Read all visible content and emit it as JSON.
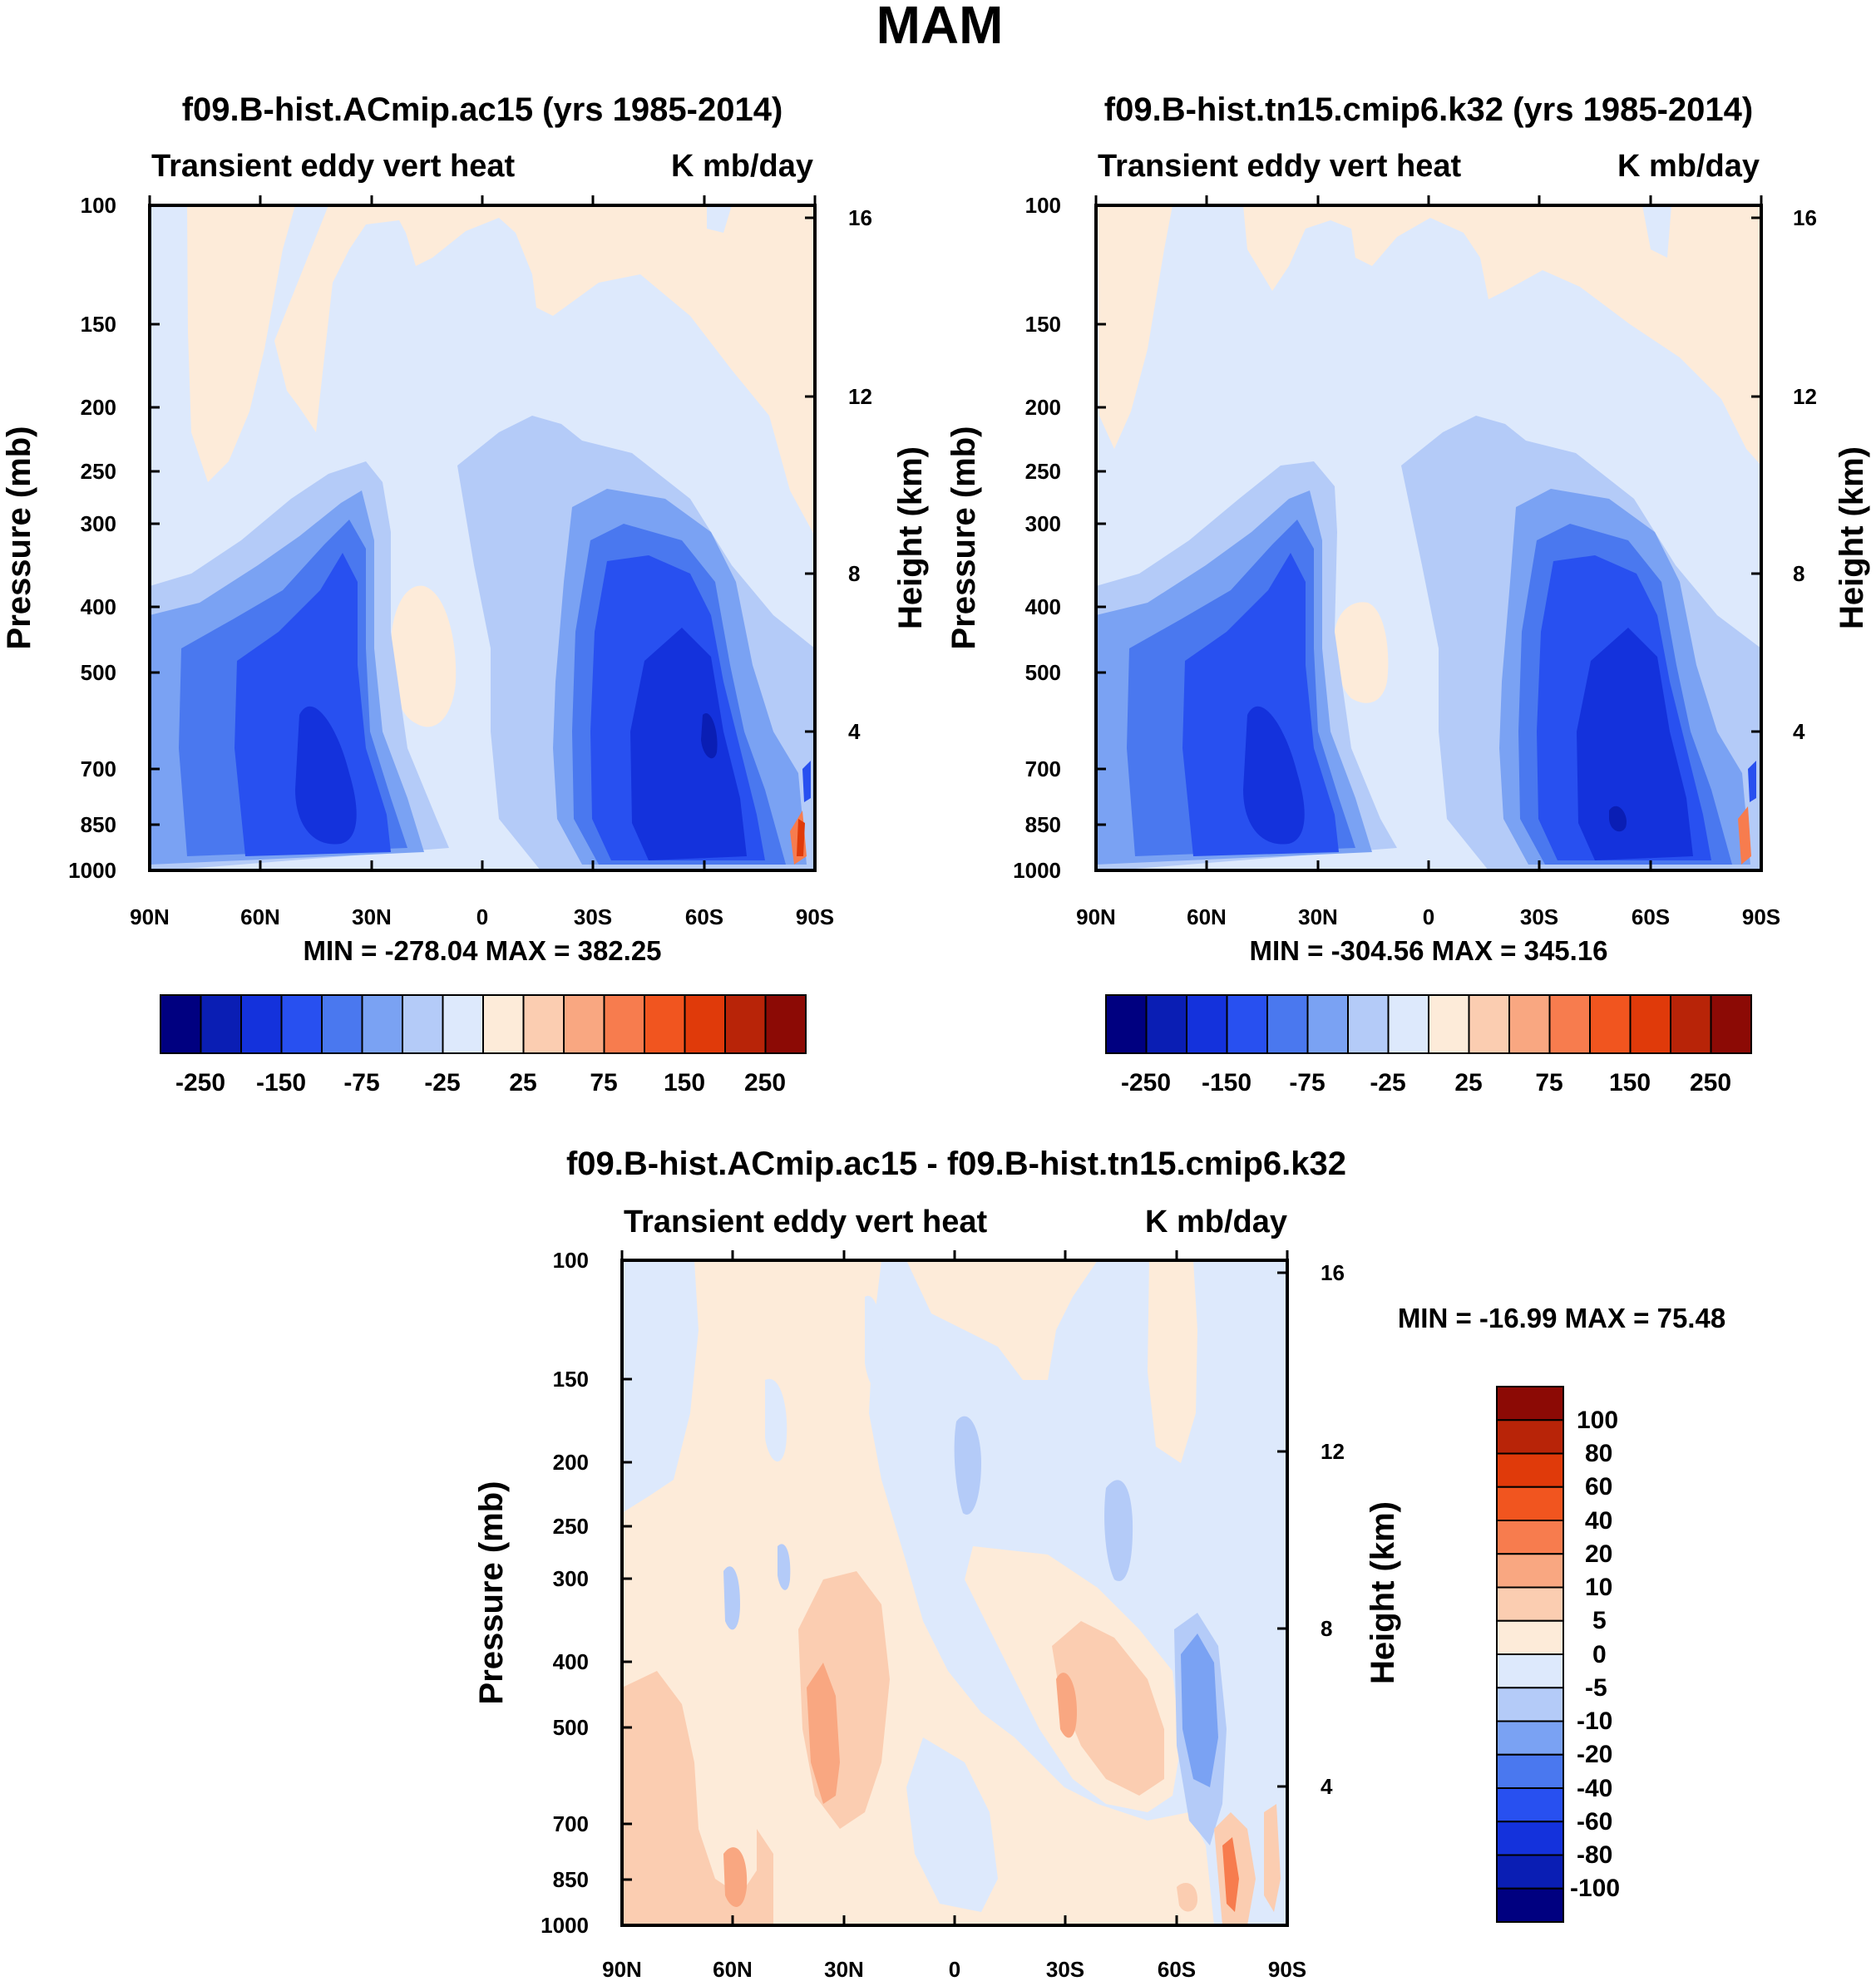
{
  "chart_data": {
    "title": "MAM",
    "type": "heatmap",
    "plots": [
      {
        "id": "p1",
        "title": "f09.B-hist.ACmip.ac15 (yrs 1985-2014)",
        "left_string": "Transient eddy vert heat",
        "right_string": "K mb/day",
        "ylabel": "Pressure (mb)",
        "ylabel_right": "Height (km)",
        "x_ticks": [
          "90N",
          "60N",
          "30N",
          "0",
          "30S",
          "60S",
          "90S"
        ],
        "y_ticks": [
          100,
          150,
          200,
          250,
          300,
          400,
          500,
          700,
          850,
          1000
        ],
        "height_ticks": [
          4,
          8,
          12,
          16
        ],
        "stats": "MIN = -278.04   MAX = 382.25",
        "min": -278.04,
        "max": 382.25
      },
      {
        "id": "p2",
        "title": "f09.B-hist.tn15.cmip6.k32 (yrs 1985-2014)",
        "left_string": "Transient eddy vert heat",
        "right_string": "K mb/day",
        "ylabel": "Pressure (mb)",
        "ylabel_right": "Height (km)",
        "x_ticks": [
          "90N",
          "60N",
          "30N",
          "0",
          "30S",
          "60S",
          "90S"
        ],
        "y_ticks": [
          100,
          150,
          200,
          250,
          300,
          400,
          500,
          700,
          850,
          1000
        ],
        "height_ticks": [
          4,
          8,
          12,
          16
        ],
        "stats": "MIN = -304.56   MAX = 345.16",
        "min": -304.56,
        "max": 345.16
      },
      {
        "id": "p3",
        "title": "f09.B-hist.ACmip.ac15 - f09.B-hist.tn15.cmip6.k32",
        "left_string": "Transient eddy vert heat",
        "right_string": "K mb/day",
        "ylabel": "Pressure (mb)",
        "ylabel_right": "Height (km)",
        "x_ticks": [
          "90N",
          "60N",
          "30N",
          "0",
          "30S",
          "60S",
          "90S"
        ],
        "y_ticks": [
          100,
          150,
          200,
          250,
          300,
          400,
          500,
          700,
          850,
          1000
        ],
        "height_ticks": [
          4,
          8,
          12,
          16
        ],
        "stats": "MIN = -16.99   MAX =  75.48",
        "min": -16.99,
        "max": 75.48
      }
    ],
    "colorbar_main": {
      "orientation": "horizontal",
      "labels": [
        "-250",
        "-150",
        "-75",
        "-25",
        "25",
        "75",
        "150",
        "250"
      ],
      "colors": [
        "#000080",
        "#0a1eb4",
        "#1432dc",
        "#2850f0",
        "#4a78ef",
        "#7aa2f3",
        "#b4cbf8",
        "#dde9fc",
        "#fdebd9",
        "#fbcdb1",
        "#f9a781",
        "#f77c4e",
        "#f1551f",
        "#e03a0a",
        "#b82408",
        "#8c0a05"
      ]
    },
    "colorbar_diff": {
      "orientation": "vertical",
      "labels": [
        "100",
        "80",
        "60",
        "40",
        "20",
        "10",
        "5",
        "0",
        "-5",
        "-10",
        "-20",
        "-40",
        "-60",
        "-80",
        "-100"
      ],
      "colors": [
        "#8c0a05",
        "#b82408",
        "#e03a0a",
        "#f1551f",
        "#f77c4e",
        "#f9a781",
        "#fbcdb1",
        "#fdebd9",
        "#dde9fc",
        "#b4cbf8",
        "#7aa2f3",
        "#4a78ef",
        "#2850f0",
        "#1432dc",
        "#0a1eb4",
        "#000080"
      ]
    }
  }
}
